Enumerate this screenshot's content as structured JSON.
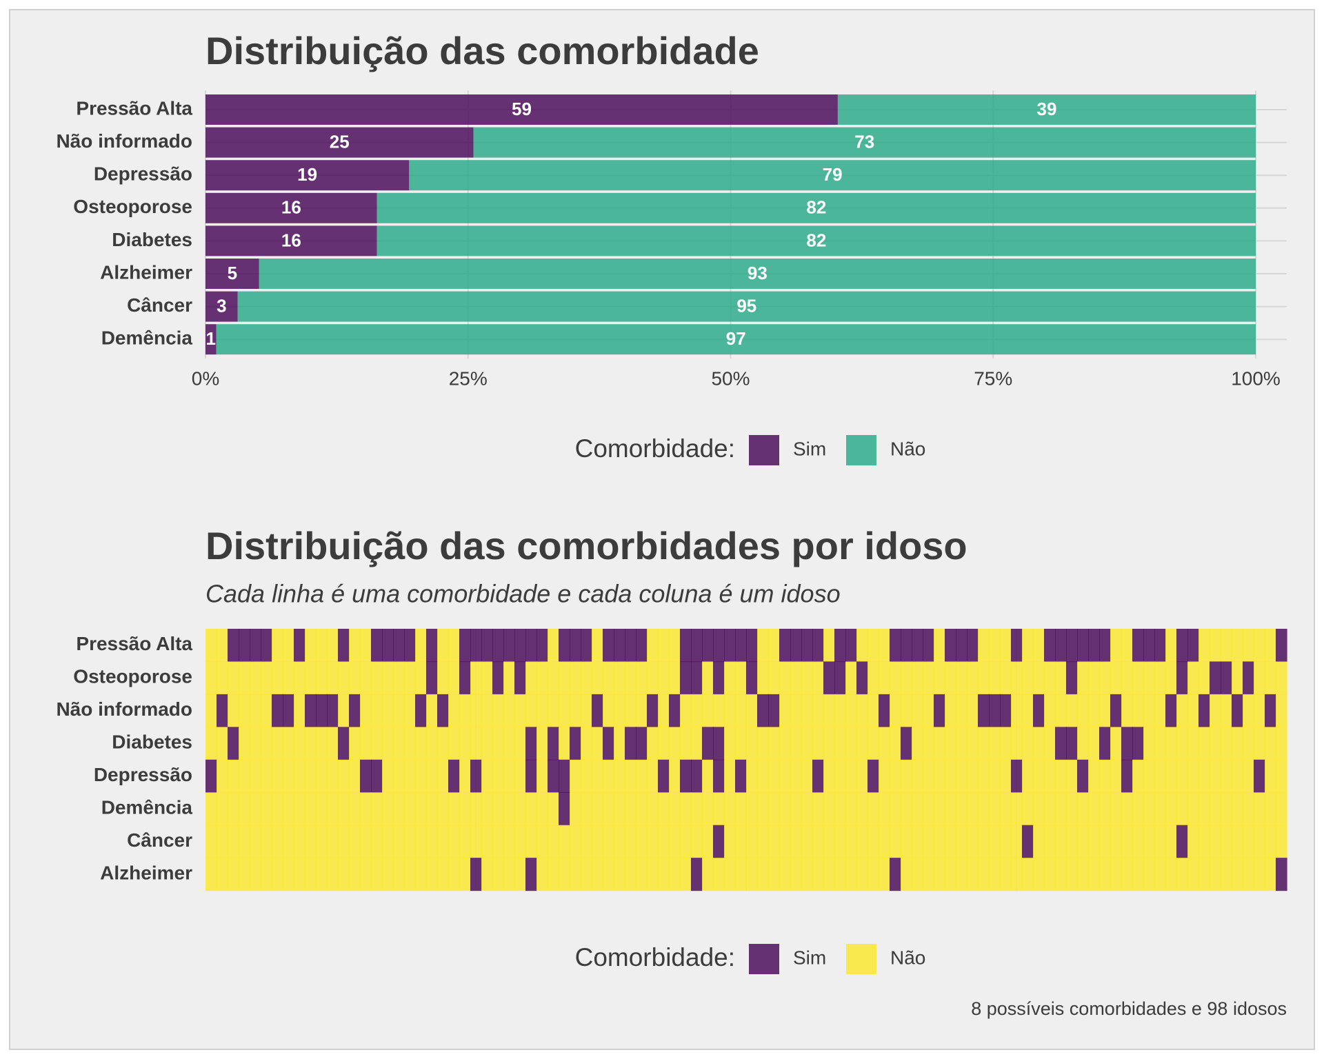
{
  "chart_data": [
    {
      "type": "bar",
      "orientation": "horizontal",
      "stacking": "fill",
      "title": "Distribuição das comorbidade",
      "categories": [
        "Pressão Alta",
        "Não informado",
        "Depressão",
        "Osteoporose",
        "Diabetes",
        "Alzheimer",
        "Câncer",
        "Demência"
      ],
      "series": [
        {
          "name": "Sim",
          "color": "#440154",
          "values": [
            59,
            25,
            19,
            16,
            16,
            5,
            3,
            1
          ]
        },
        {
          "name": "Não",
          "color": "#22a884",
          "values": [
            39,
            73,
            79,
            82,
            82,
            93,
            95,
            97
          ]
        }
      ],
      "xlim": [
        0,
        100
      ],
      "xticks": [
        {
          "value": 0,
          "label": "0%"
        },
        {
          "value": 25,
          "label": "25%"
        },
        {
          "value": 50,
          "label": "50%"
        },
        {
          "value": 75,
          "label": "75%"
        },
        {
          "value": 100,
          "label": "100%"
        }
      ],
      "grid": true,
      "opacity": 0.8,
      "legend_title": "Comorbidade:",
      "legend_position": "bottom"
    },
    {
      "type": "heatmap",
      "title": "Distribuição das comorbidades por idoso",
      "subtitle": "Cada linha é uma comorbidade e cada coluna é um idoso",
      "categories": [
        "Pressão Alta",
        "Osteoporose",
        "Não informado",
        "Diabetes",
        "Depressão",
        "Demência",
        "Câncer",
        "Alzheimer"
      ],
      "values": [
        [
          0,
          0,
          1,
          1,
          1,
          1,
          0,
          0,
          1,
          0,
          0,
          0,
          1,
          0,
          0,
          1,
          1,
          1,
          1,
          0,
          1,
          0,
          0,
          1,
          1,
          1,
          1,
          1,
          1,
          1,
          1,
          0,
          1,
          1,
          1,
          0,
          1,
          1,
          1,
          1,
          0,
          0,
          0,
          1,
          1,
          1,
          1,
          1,
          1,
          1,
          0,
          0,
          1,
          1,
          1,
          1,
          0,
          1,
          1,
          0,
          0,
          0,
          1,
          1,
          1,
          1,
          0,
          1,
          1,
          1,
          0,
          0,
          0,
          1,
          0,
          0,
          1,
          1,
          1,
          1,
          1,
          1,
          0,
          0,
          1,
          1,
          1,
          0,
          1,
          1,
          0,
          0,
          0,
          0,
          0,
          0,
          0,
          1
        ],
        [
          0,
          0,
          0,
          0,
          0,
          0,
          0,
          0,
          0,
          0,
          0,
          0,
          0,
          0,
          0,
          0,
          0,
          0,
          0,
          0,
          1,
          0,
          0,
          1,
          0,
          0,
          1,
          0,
          1,
          0,
          0,
          0,
          0,
          0,
          0,
          0,
          0,
          0,
          0,
          0,
          0,
          0,
          0,
          1,
          1,
          0,
          1,
          0,
          0,
          1,
          0,
          0,
          0,
          0,
          0,
          0,
          1,
          1,
          0,
          1,
          0,
          0,
          0,
          0,
          0,
          0,
          0,
          0,
          0,
          0,
          0,
          0,
          0,
          0,
          0,
          0,
          0,
          0,
          1,
          0,
          0,
          0,
          0,
          0,
          0,
          0,
          0,
          0,
          1,
          0,
          0,
          1,
          1,
          0,
          1,
          0,
          0,
          0
        ],
        [
          0,
          1,
          0,
          0,
          0,
          0,
          1,
          1,
          0,
          1,
          1,
          1,
          0,
          1,
          0,
          0,
          0,
          0,
          0,
          1,
          0,
          1,
          0,
          0,
          0,
          0,
          0,
          0,
          0,
          0,
          0,
          0,
          0,
          0,
          0,
          1,
          0,
          0,
          0,
          0,
          1,
          0,
          1,
          0,
          0,
          0,
          0,
          0,
          0,
          0,
          1,
          1,
          0,
          0,
          0,
          0,
          0,
          0,
          0,
          0,
          0,
          1,
          0,
          0,
          0,
          0,
          1,
          0,
          0,
          0,
          1,
          1,
          1,
          0,
          0,
          1,
          0,
          0,
          0,
          0,
          0,
          0,
          1,
          0,
          0,
          0,
          0,
          1,
          0,
          0,
          1,
          0,
          0,
          1,
          0,
          0,
          1,
          0
        ],
        [
          0,
          0,
          1,
          0,
          0,
          0,
          0,
          0,
          0,
          0,
          0,
          0,
          1,
          0,
          0,
          0,
          0,
          0,
          0,
          0,
          0,
          0,
          0,
          0,
          0,
          0,
          0,
          0,
          0,
          1,
          0,
          1,
          0,
          1,
          0,
          0,
          1,
          0,
          1,
          1,
          0,
          0,
          0,
          0,
          0,
          1,
          1,
          0,
          0,
          0,
          0,
          0,
          0,
          0,
          0,
          0,
          0,
          0,
          0,
          0,
          0,
          0,
          0,
          1,
          0,
          0,
          0,
          0,
          0,
          0,
          0,
          0,
          0,
          0,
          0,
          0,
          0,
          1,
          1,
          0,
          0,
          1,
          0,
          1,
          1,
          0,
          0,
          0,
          0,
          0,
          0,
          0,
          0,
          0,
          0,
          0,
          0,
          0
        ],
        [
          1,
          0,
          0,
          0,
          0,
          0,
          0,
          0,
          0,
          0,
          0,
          0,
          0,
          0,
          1,
          1,
          0,
          0,
          0,
          0,
          0,
          0,
          1,
          0,
          1,
          0,
          0,
          0,
          0,
          1,
          0,
          1,
          1,
          0,
          0,
          0,
          0,
          0,
          0,
          0,
          0,
          1,
          0,
          1,
          1,
          0,
          1,
          0,
          1,
          0,
          0,
          0,
          0,
          0,
          0,
          1,
          0,
          0,
          0,
          0,
          1,
          0,
          0,
          0,
          0,
          0,
          0,
          0,
          0,
          0,
          0,
          0,
          0,
          1,
          0,
          0,
          0,
          0,
          0,
          1,
          0,
          0,
          0,
          1,
          0,
          0,
          0,
          0,
          0,
          0,
          0,
          0,
          0,
          0,
          0,
          1,
          0,
          0
        ],
        [
          0,
          0,
          0,
          0,
          0,
          0,
          0,
          0,
          0,
          0,
          0,
          0,
          0,
          0,
          0,
          0,
          0,
          0,
          0,
          0,
          0,
          0,
          0,
          0,
          0,
          0,
          0,
          0,
          0,
          0,
          0,
          0,
          1,
          0,
          0,
          0,
          0,
          0,
          0,
          0,
          0,
          0,
          0,
          0,
          0,
          0,
          0,
          0,
          0,
          0,
          0,
          0,
          0,
          0,
          0,
          0,
          0,
          0,
          0,
          0,
          0,
          0,
          0,
          0,
          0,
          0,
          0,
          0,
          0,
          0,
          0,
          0,
          0,
          0,
          0,
          0,
          0,
          0,
          0,
          0,
          0,
          0,
          0,
          0,
          0,
          0,
          0,
          0,
          0,
          0,
          0,
          0,
          0,
          0,
          0,
          0,
          0,
          0
        ],
        [
          0,
          0,
          0,
          0,
          0,
          0,
          0,
          0,
          0,
          0,
          0,
          0,
          0,
          0,
          0,
          0,
          0,
          0,
          0,
          0,
          0,
          0,
          0,
          0,
          0,
          0,
          0,
          0,
          0,
          0,
          0,
          0,
          0,
          0,
          0,
          0,
          0,
          0,
          0,
          0,
          0,
          0,
          0,
          0,
          0,
          0,
          1,
          0,
          0,
          0,
          0,
          0,
          0,
          0,
          0,
          0,
          0,
          0,
          0,
          0,
          0,
          0,
          0,
          0,
          0,
          0,
          0,
          0,
          0,
          0,
          0,
          0,
          0,
          0,
          1,
          0,
          0,
          0,
          0,
          0,
          0,
          0,
          0,
          0,
          0,
          0,
          0,
          0,
          1,
          0,
          0,
          0,
          0,
          0,
          0,
          0,
          0,
          0
        ],
        [
          0,
          0,
          0,
          0,
          0,
          0,
          0,
          0,
          0,
          0,
          0,
          0,
          0,
          0,
          0,
          0,
          0,
          0,
          0,
          0,
          0,
          0,
          0,
          0,
          1,
          0,
          0,
          0,
          0,
          1,
          0,
          0,
          0,
          0,
          0,
          0,
          0,
          0,
          0,
          0,
          0,
          0,
          0,
          0,
          1,
          0,
          0,
          0,
          0,
          0,
          0,
          0,
          0,
          0,
          0,
          0,
          0,
          0,
          0,
          0,
          0,
          0,
          1,
          0,
          0,
          0,
          0,
          0,
          0,
          0,
          0,
          0,
          0,
          0,
          0,
          0,
          0,
          0,
          0,
          0,
          0,
          0,
          0,
          0,
          0,
          0,
          0,
          0,
          0,
          0,
          0,
          0,
          0,
          0,
          0,
          0,
          0,
          1
        ]
      ],
      "legend": [
        {
          "name": "Sim",
          "color": "#440154",
          "value": 1
        },
        {
          "name": "Não",
          "color": "#fde725",
          "value": 0
        }
      ],
      "opacity": 0.8,
      "legend_title": "Comorbidade:",
      "legend_position": "bottom",
      "caption": "8 possíveis comorbidades e 98 idosos"
    }
  ]
}
